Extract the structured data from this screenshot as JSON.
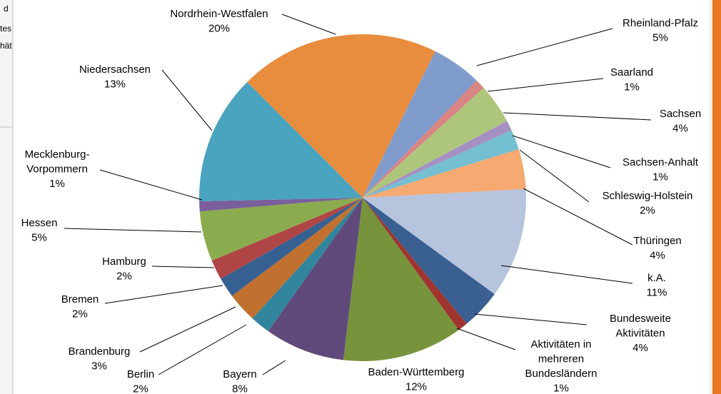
{
  "sidebar_fragments": [
    "d",
    "tes",
    "hät"
  ],
  "chart_data": {
    "type": "pie",
    "categories": [
      "Baden-Württemberg",
      "Bayern",
      "Berlin",
      "Brandenburg",
      "Bremen",
      "Hamburg",
      "Hessen",
      "Mecklenburg-\nVorpommern",
      "Niedersachsen",
      "Nordrhein-Westfalen",
      "Rheinland-Pfalz",
      "Saarland",
      "Sachsen",
      "Sachsen-Anhalt",
      "Schleswig-Holstein",
      "Thüringen",
      "k.A.",
      "Bundesweite\nAktivitäten",
      "Aktivitäten in\nmehreren\nBundesländern"
    ],
    "values": [
      12,
      8,
      2,
      3,
      2,
      2,
      5,
      1,
      13,
      20,
      5,
      1,
      4,
      1,
      2,
      4,
      11,
      4,
      1
    ],
    "value_labels": [
      "12%",
      "8%",
      "2%",
      "3%",
      "2%",
      "2%",
      "5%",
      "1%",
      "13%",
      "20%",
      "5%",
      "1%",
      "4%",
      "1%",
      "2%",
      "4%",
      "11%",
      "4%",
      "1%"
    ],
    "colors": [
      "#77933c",
      "#604a7b",
      "#31859c",
      "#c0712f",
      "#376092",
      "#b04545",
      "#8bab4f",
      "#7a5f9a",
      "#4aa3bf",
      "#e88c3e",
      "#7f9ccc",
      "#d88583",
      "#aec67c",
      "#a590c4",
      "#74bfd2",
      "#f6a970",
      "#b6c4de",
      "#3a5f91",
      "#a03530"
    ]
  }
}
